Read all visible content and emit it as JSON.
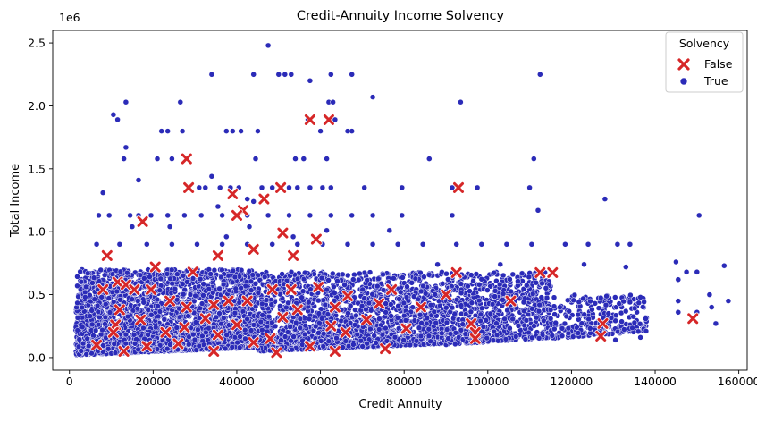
{
  "chart_data": {
    "type": "scatter",
    "title": "Credit-Annuity Income Solvency",
    "xlabel": "Credit Annuity",
    "ylabel": "Total Income",
    "y_offset_label": "1e6",
    "xlim": [
      -4000,
      162000
    ],
    "ylim": [
      -100000,
      2600000
    ],
    "x_ticks": [
      0,
      20000,
      40000,
      60000,
      80000,
      100000,
      120000,
      140000,
      160000
    ],
    "x_tick_labels": [
      "0",
      "20000",
      "40000",
      "60000",
      "80000",
      "100000",
      "120000",
      "140000",
      "160000"
    ],
    "y_ticks": [
      0,
      500000,
      1000000,
      1500000,
      2000000,
      2500000
    ],
    "y_tick_labels": [
      "0.0",
      "0.5",
      "1.0",
      "1.5",
      "2.0",
      "2.5"
    ],
    "grid": false,
    "legend": {
      "title": "Solvency",
      "placement": "top-right",
      "entries": [
        {
          "label": "False",
          "marker": "x",
          "color": "#d62728"
        },
        {
          "label": "True",
          "marker": "circle",
          "color": "#2b2bb8"
        }
      ]
    },
    "series": [
      {
        "name": "True",
        "color": "#2b2bb8",
        "marker": "circle",
        "points": [
          [
            47500,
            2480000
          ],
          [
            34000,
            2250000
          ],
          [
            44000,
            2250000
          ],
          [
            50000,
            2250000
          ],
          [
            51500,
            2250000
          ],
          [
            53000,
            2250000
          ],
          [
            62500,
            2250000
          ],
          [
            67500,
            2250000
          ],
          [
            112500,
            2250000
          ],
          [
            57500,
            2200000
          ],
          [
            62000,
            2030000
          ],
          [
            63000,
            2030000
          ],
          [
            72500,
            2070000
          ],
          [
            13500,
            2030000
          ],
          [
            26500,
            2030000
          ],
          [
            93500,
            2030000
          ],
          [
            10500,
            1930000
          ],
          [
            11500,
            1890000
          ],
          [
            57000,
            1890000
          ],
          [
            63500,
            1890000
          ],
          [
            22000,
            1800000
          ],
          [
            23500,
            1800000
          ],
          [
            27000,
            1800000
          ],
          [
            37500,
            1800000
          ],
          [
            39000,
            1800000
          ],
          [
            41000,
            1800000
          ],
          [
            45000,
            1800000
          ],
          [
            60000,
            1800000
          ],
          [
            66500,
            1800000
          ],
          [
            67500,
            1800000
          ],
          [
            13500,
            1670000
          ],
          [
            86000,
            1580000
          ],
          [
            111000,
            1580000
          ],
          [
            13000,
            1580000
          ],
          [
            21000,
            1580000
          ],
          [
            24500,
            1580000
          ],
          [
            44500,
            1580000
          ],
          [
            54000,
            1580000
          ],
          [
            56000,
            1580000
          ],
          [
            61500,
            1580000
          ],
          [
            34000,
            1440000
          ],
          [
            16500,
            1410000
          ],
          [
            31000,
            1350000
          ],
          [
            32500,
            1350000
          ],
          [
            36000,
            1350000
          ],
          [
            38500,
            1350000
          ],
          [
            40500,
            1350000
          ],
          [
            46000,
            1350000
          ],
          [
            48500,
            1350000
          ],
          [
            52500,
            1350000
          ],
          [
            54500,
            1350000
          ],
          [
            57500,
            1350000
          ],
          [
            60500,
            1350000
          ],
          [
            62500,
            1350000
          ],
          [
            70500,
            1350000
          ],
          [
            79500,
            1350000
          ],
          [
            91500,
            1350000
          ],
          [
            97500,
            1350000
          ],
          [
            110000,
            1350000
          ],
          [
            8000,
            1310000
          ],
          [
            128000,
            1260000
          ],
          [
            42500,
            1260000
          ],
          [
            44000,
            1240000
          ],
          [
            35500,
            1200000
          ],
          [
            112000,
            1170000
          ],
          [
            150500,
            1130000
          ],
          [
            7000,
            1130000
          ],
          [
            9500,
            1130000
          ],
          [
            14500,
            1130000
          ],
          [
            16500,
            1130000
          ],
          [
            19500,
            1130000
          ],
          [
            23500,
            1130000
          ],
          [
            27500,
            1130000
          ],
          [
            31500,
            1130000
          ],
          [
            36500,
            1130000
          ],
          [
            42500,
            1130000
          ],
          [
            47500,
            1130000
          ],
          [
            52500,
            1130000
          ],
          [
            57500,
            1130000
          ],
          [
            62500,
            1130000
          ],
          [
            67500,
            1130000
          ],
          [
            72500,
            1130000
          ],
          [
            79500,
            1130000
          ],
          [
            91500,
            1130000
          ],
          [
            15000,
            1040000
          ],
          [
            24000,
            1040000
          ],
          [
            43000,
            1040000
          ],
          [
            61500,
            1010000
          ],
          [
            76500,
            1010000
          ],
          [
            37500,
            960000
          ],
          [
            53500,
            960000
          ],
          [
            6500,
            900000
          ],
          [
            12000,
            900000
          ],
          [
            18500,
            900000
          ],
          [
            24500,
            900000
          ],
          [
            30500,
            900000
          ],
          [
            36500,
            900000
          ],
          [
            42500,
            900000
          ],
          [
            48500,
            900000
          ],
          [
            54500,
            900000
          ],
          [
            60500,
            900000
          ],
          [
            66500,
            900000
          ],
          [
            72500,
            900000
          ],
          [
            78500,
            900000
          ],
          [
            84500,
            900000
          ],
          [
            92500,
            900000
          ],
          [
            98500,
            900000
          ],
          [
            104500,
            900000
          ],
          [
            110500,
            900000
          ],
          [
            118500,
            900000
          ],
          [
            124000,
            900000
          ],
          [
            131000,
            900000
          ],
          [
            134000,
            900000
          ],
          [
            145000,
            760000
          ],
          [
            156500,
            730000
          ],
          [
            88000,
            740000
          ],
          [
            103000,
            740000
          ],
          [
            123000,
            740000
          ],
          [
            133000,
            720000
          ],
          [
            147500,
            680000
          ],
          [
            150000,
            680000
          ],
          [
            145500,
            620000
          ],
          [
            153000,
            500000
          ],
          [
            157500,
            450000
          ],
          [
            145500,
            450000
          ],
          [
            153500,
            400000
          ],
          [
            145500,
            360000
          ],
          [
            150000,
            360000
          ],
          [
            154500,
            270000
          ],
          [
            136500,
            160000
          ],
          [
            130500,
            140000
          ],
          [
            134000,
            440000
          ],
          [
            136500,
            480000
          ]
        ],
        "dense_regions": [
          {
            "x_range": [
              1500,
              45000
            ],
            "y_range": [
              20000,
              700000
            ]
          },
          {
            "x_range": [
              45000,
              90000
            ],
            "y_range": [
              50000,
              680000
            ]
          },
          {
            "x_range": [
              90000,
              115000
            ],
            "y_range": [
              100000,
              680000
            ]
          },
          {
            "x_range": [
              115000,
              138000
            ],
            "y_range": [
              150000,
              500000
            ]
          }
        ]
      },
      {
        "name": "False",
        "color": "#d62728",
        "marker": "x",
        "points": [
          [
            57500,
            1890000
          ],
          [
            62000,
            1890000
          ],
          [
            28000,
            1580000
          ],
          [
            28500,
            1350000
          ],
          [
            50500,
            1350000
          ],
          [
            93000,
            1350000
          ],
          [
            39000,
            1300000
          ],
          [
            46500,
            1260000
          ],
          [
            41500,
            1170000
          ],
          [
            40000,
            1130000
          ],
          [
            17500,
            1080000
          ],
          [
            51000,
            990000
          ],
          [
            59000,
            940000
          ],
          [
            44000,
            860000
          ],
          [
            53500,
            810000
          ],
          [
            9000,
            810000
          ],
          [
            35500,
            810000
          ],
          [
            92500,
            675000
          ],
          [
            112500,
            675000
          ],
          [
            115500,
            675000
          ],
          [
            20500,
            720000
          ],
          [
            29500,
            680000
          ],
          [
            11500,
            600000
          ],
          [
            13500,
            580000
          ],
          [
            8000,
            540000
          ],
          [
            15500,
            540000
          ],
          [
            19500,
            540000
          ],
          [
            48500,
            540000
          ],
          [
            53000,
            540000
          ],
          [
            59500,
            560000
          ],
          [
            77000,
            540000
          ],
          [
            66500,
            490000
          ],
          [
            90000,
            500000
          ],
          [
            105500,
            450000
          ],
          [
            24000,
            450000
          ],
          [
            38000,
            450000
          ],
          [
            42500,
            450000
          ],
          [
            12000,
            380000
          ],
          [
            28000,
            400000
          ],
          [
            34500,
            420000
          ],
          [
            54500,
            380000
          ],
          [
            63500,
            400000
          ],
          [
            74000,
            430000
          ],
          [
            84000,
            400000
          ],
          [
            149000,
            310000
          ],
          [
            17000,
            300000
          ],
          [
            32500,
            310000
          ],
          [
            51000,
            320000
          ],
          [
            71000,
            300000
          ],
          [
            96000,
            270000
          ],
          [
            127500,
            270000
          ],
          [
            11000,
            260000
          ],
          [
            27500,
            240000
          ],
          [
            40000,
            260000
          ],
          [
            62500,
            250000
          ],
          [
            80500,
            230000
          ],
          [
            10500,
            200000
          ],
          [
            23000,
            200000
          ],
          [
            35500,
            180000
          ],
          [
            48000,
            150000
          ],
          [
            66000,
            200000
          ],
          [
            97000,
            200000
          ],
          [
            127000,
            170000
          ],
          [
            97000,
            150000
          ],
          [
            6500,
            100000
          ],
          [
            18500,
            90000
          ],
          [
            26000,
            110000
          ],
          [
            44000,
            120000
          ],
          [
            57500,
            90000
          ],
          [
            75500,
            70000
          ],
          [
            34500,
            50000
          ],
          [
            63500,
            50000
          ],
          [
            13000,
            50000
          ],
          [
            49500,
            40000
          ]
        ]
      }
    ]
  }
}
